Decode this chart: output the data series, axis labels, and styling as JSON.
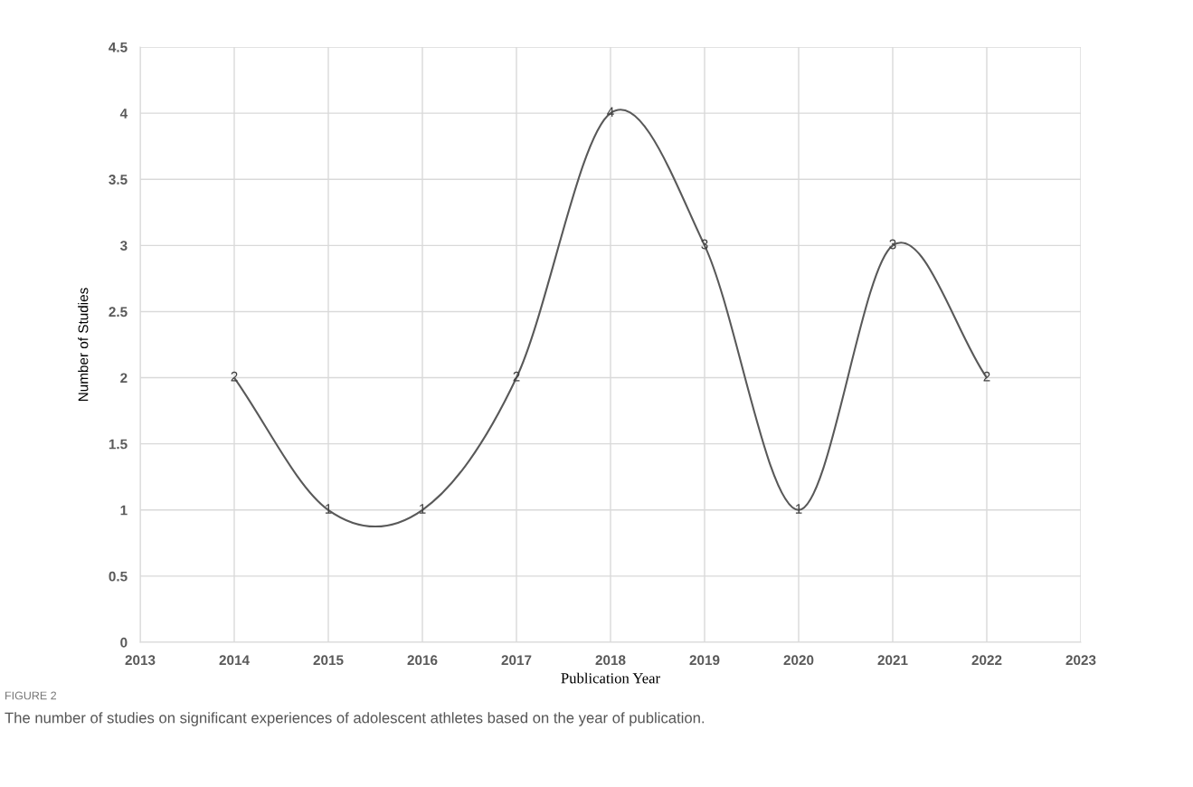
{
  "chart_data": {
    "type": "line",
    "xlabel": "Publication Year",
    "ylabel": "Number of Studies",
    "x": [
      2014,
      2015,
      2016,
      2017,
      2018,
      2019,
      2020,
      2021,
      2022
    ],
    "series": [
      {
        "color": "#595959",
        "values": [
          2,
          1,
          1,
          2,
          4,
          3,
          1,
          3,
          2
        ]
      }
    ],
    "xlim": [
      2013,
      2023
    ],
    "xticks": [
      2013,
      2014,
      2015,
      2016,
      2017,
      2018,
      2019,
      2020,
      2021,
      2022,
      2023
    ],
    "ylim": [
      0,
      4.5
    ],
    "yticks": [
      0,
      0.5,
      1,
      1.5,
      2,
      2.5,
      3,
      3.5,
      4,
      4.5
    ],
    "grid": true,
    "data_labels": true,
    "marker": "none",
    "line_style": "solid",
    "legend": false,
    "annotations": [
      "FIGURE 2",
      "The number of studies on significant experiences of adolescent athletes based on the year of publication."
    ]
  }
}
